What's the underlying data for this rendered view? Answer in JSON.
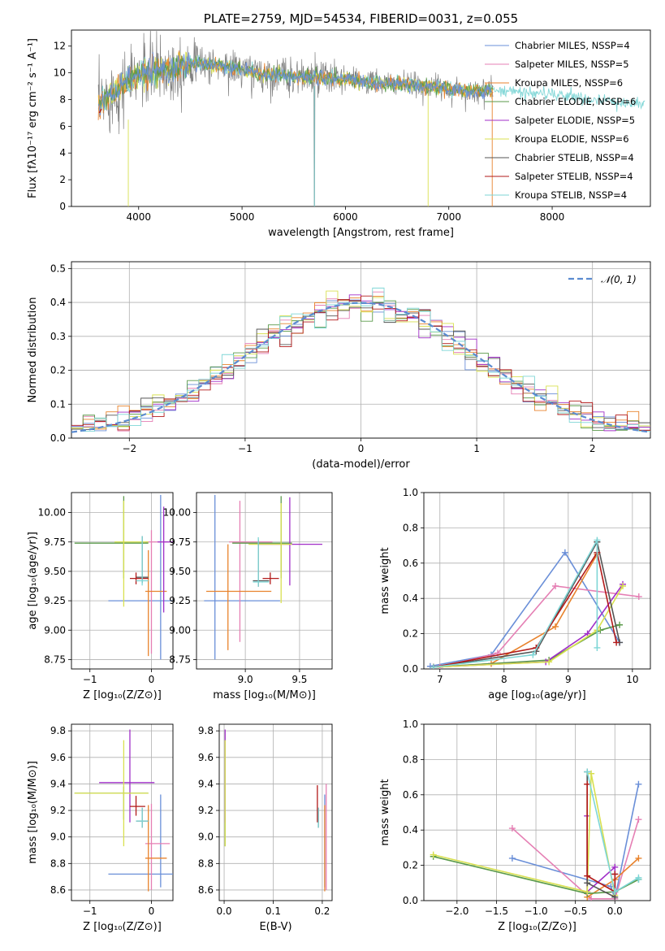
{
  "colors": [
    "#6a8fd8",
    "#e57fb4",
    "#e8832d",
    "#5a9a4a",
    "#a12fc8",
    "#d8e050",
    "#555555",
    "#b21a1a",
    "#7ed6d6"
  ],
  "chart_data": [
    {
      "id": "spectrum",
      "type": "line",
      "title": "PLATE=2759, MJD=54534, FIBERID=0031, z=0.055",
      "xlabel": "wavelength [Angstrom, rest frame]",
      "ylabel": "Flux [fλ10⁻¹⁷ erg cm⁻² s⁻¹ A⁻¹]",
      "xlim": [
        3350,
        8950
      ],
      "ylim": [
        0,
        13.2
      ],
      "xticks": [
        "4000",
        "5000",
        "6000",
        "7000",
        "8000"
      ],
      "yticks": [
        "0",
        "2",
        "4",
        "6",
        "8",
        "10",
        "12"
      ],
      "legend_position": "top-right",
      "legend": [
        "Chabrier MILES, NSSP=4",
        "Salpeter MILES, NSSP=5",
        "Kroupa MILES, NSSP=6",
        "Chabrier ELODIE, NSSP=6",
        "Salpeter ELODIE, NSSP=5",
        "Kroupa ELODIE, NSSP=6",
        "Chabrier STELIB, NSSP=4",
        "Salpeter STELIB, NSSP=4",
        "Kroupa STELIB, NSSP=4"
      ],
      "continuum": {
        "x": [
          3620,
          3700,
          3800,
          3900,
          4000,
          4100,
          4200,
          4300,
          4400,
          4500,
          4600,
          4700,
          4800,
          4900,
          5000,
          5200,
          5400,
          5600,
          5800,
          6000,
          6200,
          6400,
          6600,
          6800,
          7000,
          7200,
          7400,
          7600,
          7800,
          8000,
          8200,
          8400,
          8600,
          8800
        ],
        "y": [
          7.5,
          8.2,
          8.8,
          9.3,
          9.8,
          10.0,
          10.3,
          10.2,
          10.6,
          10.7,
          10.8,
          10.6,
          10.5,
          10.4,
          10.2,
          9.9,
          9.8,
          9.7,
          9.6,
          9.5,
          9.3,
          9.2,
          9.1,
          9.0,
          8.8,
          8.6,
          8.7,
          8.6,
          8.5,
          8.4,
          8.2,
          8.0,
          7.8,
          7.7
        ]
      }
    },
    {
      "id": "residuals",
      "type": "line",
      "xlabel": "(data-model)/error",
      "ylabel": "Normed distribution",
      "xlim": [
        -2.5,
        2.5
      ],
      "ylim": [
        0,
        0.52
      ],
      "xticks": [
        "−2",
        "−1",
        "0",
        "1",
        "2"
      ],
      "yticks": [
        "0.0",
        "0.1",
        "0.2",
        "0.3",
        "0.4",
        "0.5"
      ],
      "legend_position": "top-right",
      "legend": [
        "𝒩(0, 1)"
      ],
      "grid": true
    },
    {
      "id": "age_vs_Z",
      "type": "scatter",
      "xlabel": "Z [log₁₀(Z/Z⊙)]",
      "ylabel": "age  [log₁₀(age/yr)]",
      "xlim": [
        -1.3,
        0.35
      ],
      "ylim": [
        8.67,
        10.17
      ],
      "xticks": [
        "−1",
        "0"
      ],
      "yticks": [
        "8.75",
        "9.00",
        "9.25",
        "9.50",
        "9.75",
        "10.00"
      ],
      "grid": true,
      "points": [
        {
          "x": 0.15,
          "y": 9.25,
          "xerr": [
            0.85,
            0.3
          ],
          "yerr": [
            0.5,
            0.9
          ]
        },
        {
          "x": 0.0,
          "y": 9.75,
          "xerr": [
            0.1,
            0.3
          ],
          "yerr": [
            0.95,
            0.1
          ]
        },
        {
          "x": -0.05,
          "y": 9.33,
          "xerr": [
            0.05,
            0.3
          ],
          "yerr": [
            0.55,
            0.35
          ]
        },
        {
          "x": -0.45,
          "y": 9.74,
          "xerr": [
            0.8,
            0.4
          ],
          "yerr": [
            0.3,
            0.4
          ]
        },
        {
          "x": 0.2,
          "y": 9.75,
          "xerr": [
            0.1,
            0.2
          ],
          "yerr": [
            0.6,
            0.3
          ]
        },
        {
          "x": -0.45,
          "y": 9.75,
          "xerr": [
            0.15,
            0.4
          ],
          "yerr": [
            0.55,
            0.35
          ]
        },
        {
          "x": -0.15,
          "y": 9.45,
          "xerr": [
            0.1,
            0.1
          ],
          "yerr": [
            0.05,
            0.35
          ]
        },
        {
          "x": -0.25,
          "y": 9.44,
          "xerr": [
            0.1,
            0.2
          ],
          "yerr": [
            0.05,
            0.05
          ]
        },
        {
          "x": -0.15,
          "y": 9.42,
          "xerr": [
            0.1,
            0.1
          ],
          "yerr": [
            0.04,
            0.38
          ]
        }
      ]
    },
    {
      "id": "age_vs_mass",
      "type": "scatter",
      "xlabel": "mass [log₁₀(M/M⊙)]",
      "ylabel": "",
      "xlim": [
        8.55,
        9.8
      ],
      "ylim": [
        8.67,
        10.17
      ],
      "xticks": [
        "9.0",
        "9.5"
      ],
      "yticks": [
        "8.75",
        "9.00",
        "9.25",
        "9.50",
        "9.75",
        "10.00"
      ],
      "grid": true,
      "points": [
        {
          "x": 8.72,
          "y": 9.25,
          "xerr": [
            0.1,
            0.6
          ],
          "yerr": [
            0.5,
            0.9
          ]
        },
        {
          "x": 8.95,
          "y": 9.75,
          "xerr": [
            0.1,
            0.3
          ],
          "yerr": [
            0.85,
            0.35
          ]
        },
        {
          "x": 8.84,
          "y": 9.33,
          "xerr": [
            0.2,
            0.4
          ],
          "yerr": [
            0.5,
            0.4
          ]
        },
        {
          "x": 9.33,
          "y": 9.74,
          "xerr": [
            0.45,
            0.1
          ],
          "yerr": [
            0.3,
            0.4
          ]
        },
        {
          "x": 9.41,
          "y": 9.73,
          "xerr": [
            0.3,
            0.3
          ],
          "yerr": [
            0.35,
            0.4
          ]
        },
        {
          "x": 9.33,
          "y": 9.73,
          "xerr": [
            0.3,
            0.1
          ],
          "yerr": [
            0.5,
            0.35
          ]
        },
        {
          "x": 9.12,
          "y": 9.42,
          "xerr": [
            0.05,
            0.1
          ],
          "yerr": [
            0.05,
            0.35
          ]
        },
        {
          "x": 9.23,
          "y": 9.44,
          "xerr": [
            0.07,
            0.08
          ],
          "yerr": [
            0.05,
            0.05
          ]
        },
        {
          "x": 9.12,
          "y": 9.41,
          "xerr": [
            0.05,
            0.1
          ],
          "yerr": [
            0.04,
            0.38
          ]
        }
      ]
    },
    {
      "id": "weight_vs_age",
      "type": "line",
      "xlabel": "age  [log₁₀(age/yr)]",
      "ylabel": "mass weight",
      "xlim": [
        6.75,
        10.28
      ],
      "ylim": [
        0,
        1.0
      ],
      "xticks": [
        "7",
        "8",
        "9",
        "10"
      ],
      "yticks": [
        "0.0",
        "0.2",
        "0.4",
        "0.6",
        "0.8",
        "1.0"
      ],
      "grid": true,
      "series": [
        {
          "x": [
            6.85,
            7.8,
            8.95,
            9.8
          ],
          "y": [
            0.015,
            0.08,
            0.66,
            0.15
          ]
        },
        {
          "x": [
            7.0,
            7.9,
            8.8,
            10.1
          ],
          "y": [
            0.01,
            0.09,
            0.47,
            0.41
          ]
        },
        {
          "x": [
            6.9,
            7.8,
            8.8,
            9.45
          ],
          "y": [
            0.01,
            0.03,
            0.24,
            0.65
          ]
        },
        {
          "x": [
            6.9,
            8.7,
            9.5,
            9.8
          ],
          "y": [
            0.01,
            0.05,
            0.22,
            0.25
          ]
        },
        {
          "x": [
            6.9,
            8.65,
            9.3,
            9.85
          ],
          "y": [
            0.01,
            0.04,
            0.2,
            0.48
          ]
        },
        {
          "x": [
            6.9,
            8.7,
            9.45,
            9.85
          ],
          "y": [
            0.01,
            0.04,
            0.22,
            0.47
          ]
        },
        {
          "x": [
            6.9,
            8.5,
            9.45,
            9.8
          ],
          "y": [
            0.01,
            0.1,
            0.72,
            0.15
          ]
        },
        {
          "x": [
            6.9,
            8.5,
            9.45,
            9.75
          ],
          "y": [
            0.01,
            0.12,
            0.66,
            0.15
          ]
        },
        {
          "x": [
            6.9,
            8.45,
            9.45,
            9.45
          ],
          "y": [
            0.01,
            0.08,
            0.73,
            0.12
          ]
        }
      ]
    },
    {
      "id": "mass_vs_Z",
      "type": "scatter",
      "xlabel": "Z [log₁₀(Z/Z⊙)]",
      "ylabel": "mass [log₁₀(M/M⊙)]",
      "xlim": [
        -1.3,
        0.35
      ],
      "ylim": [
        8.52,
        9.85
      ],
      "xticks": [
        "−1",
        "0"
      ],
      "yticks": [
        "8.6",
        "8.8",
        "9.0",
        "9.2",
        "9.4",
        "9.6",
        "9.8"
      ],
      "grid": true,
      "points": [
        {
          "x": 0.15,
          "y": 8.72,
          "xerr": [
            0.85,
            0.3
          ],
          "yerr": [
            0.1,
            0.6
          ]
        },
        {
          "x": 0.0,
          "y": 8.95,
          "xerr": [
            0.1,
            0.3
          ],
          "yerr": [
            0.35,
            0.3
          ]
        },
        {
          "x": -0.05,
          "y": 8.84,
          "xerr": [
            0.05,
            0.3
          ],
          "yerr": [
            0.25,
            0.4
          ]
        },
        {
          "x": -0.45,
          "y": 9.33,
          "xerr": [
            0.8,
            0.4
          ],
          "yerr": [
            0.2,
            0.05
          ]
        },
        {
          "x": -0.35,
          "y": 9.41,
          "xerr": [
            0.5,
            0.4
          ],
          "yerr": [
            0.3,
            0.4
          ]
        },
        {
          "x": -0.45,
          "y": 9.33,
          "xerr": [
            0.8,
            0.4
          ],
          "yerr": [
            0.4,
            0.4
          ]
        },
        {
          "x": -0.15,
          "y": 9.12,
          "xerr": [
            0.1,
            0.1
          ],
          "yerr": [
            0.05,
            0.1
          ]
        },
        {
          "x": -0.25,
          "y": 9.23,
          "xerr": [
            0.1,
            0.15
          ],
          "yerr": [
            0.07,
            0.08
          ]
        },
        {
          "x": -0.15,
          "y": 9.12,
          "xerr": [
            0.1,
            0.1
          ],
          "yerr": [
            0.05,
            0.1
          ]
        }
      ]
    },
    {
      "id": "mass_vs_EBV",
      "type": "scatter",
      "xlabel": "E(B-V)",
      "ylabel": "",
      "xlim": [
        -0.01,
        0.22
      ],
      "ylim": [
        8.52,
        9.85
      ],
      "xticks": [
        "0.0",
        "0.1",
        "0.2"
      ],
      "yticks": [
        "8.6",
        "8.8",
        "9.0",
        "9.2",
        "9.4",
        "9.6",
        "9.8"
      ],
      "grid": true,
      "points": [
        {
          "x": 0.205,
          "y": 8.72,
          "xerr": [
            0,
            0
          ],
          "yerr": [
            0.1,
            0.6
          ]
        },
        {
          "x": 0.208,
          "y": 8.95,
          "xerr": [
            0,
            0
          ],
          "yerr": [
            0.35,
            0.45
          ]
        },
        {
          "x": 0.205,
          "y": 8.84,
          "xerr": [
            0,
            0
          ],
          "yerr": [
            0.25,
            0.4
          ]
        },
        {
          "x": 0.002,
          "y": 9.33,
          "xerr": [
            0,
            0
          ],
          "yerr": [
            0.4,
            0.4
          ]
        },
        {
          "x": 0.002,
          "y": 9.41,
          "xerr": [
            0,
            0
          ],
          "yerr": [
            0.3,
            0.4
          ]
        },
        {
          "x": 0.002,
          "y": 9.33,
          "xerr": [
            0,
            0
          ],
          "yerr": [
            0.4,
            0.4
          ]
        },
        {
          "x": 0.192,
          "y": 9.12,
          "xerr": [
            0,
            0
          ],
          "yerr": [
            0.05,
            0.1
          ]
        },
        {
          "x": 0.19,
          "y": 9.23,
          "xerr": [
            0,
            0
          ],
          "yerr": [
            0.12,
            0.16
          ]
        },
        {
          "x": 0.192,
          "y": 9.12,
          "xerr": [
            0,
            0
          ],
          "yerr": [
            0.05,
            0.1
          ]
        }
      ]
    },
    {
      "id": "weight_vs_Z",
      "type": "line",
      "xlabel": "Z [log₁₀(Z/Z⊙)]",
      "ylabel": "mass weight",
      "xlim": [
        -2.42,
        0.45
      ],
      "ylim": [
        0,
        1.0
      ],
      "xticks": [
        "−2.0",
        "−1.5",
        "−1.0",
        "−0.5",
        "0.0"
      ],
      "yticks": [
        "0.0",
        "0.2",
        "0.4",
        "0.6",
        "0.8",
        "1.0"
      ],
      "grid": true,
      "series": [
        {
          "x": [
            -1.3,
            -0.05,
            0.0,
            0.3
          ],
          "y": [
            0.24,
            0.08,
            0.01,
            0.66
          ]
        },
        {
          "x": [
            -1.3,
            -0.3,
            0.0,
            0.3
          ],
          "y": [
            0.41,
            0.01,
            0.01,
            0.46
          ]
        },
        {
          "x": [
            -0.35,
            -0.35,
            0.0,
            0.3
          ],
          "y": [
            0.66,
            0.02,
            0.12,
            0.24
          ]
        },
        {
          "x": [
            -2.3,
            -0.35,
            0.0,
            0.3
          ],
          "y": [
            0.25,
            0.04,
            0.05,
            0.12
          ]
        },
        {
          "x": [
            -0.35,
            -0.35,
            0.0,
            0.0
          ],
          "y": [
            0.48,
            0.05,
            0.19,
            0.05
          ]
        },
        {
          "x": [
            -2.3,
            -0.35,
            -0.3,
            0.0
          ],
          "y": [
            0.26,
            0.05,
            0.72,
            0.03
          ]
        },
        {
          "x": [
            -0.35,
            -0.35,
            0.0,
            0.0
          ],
          "y": [
            0.73,
            0.1,
            0.02,
            0.15
          ]
        },
        {
          "x": [
            -0.35,
            -0.35,
            0.0,
            0.0
          ],
          "y": [
            0.66,
            0.14,
            0.05,
            0.15
          ]
        },
        {
          "x": [
            -0.35,
            0.0,
            0.3,
            0.3
          ],
          "y": [
            0.73,
            0.05,
            0.13,
            0.12
          ]
        }
      ]
    }
  ]
}
